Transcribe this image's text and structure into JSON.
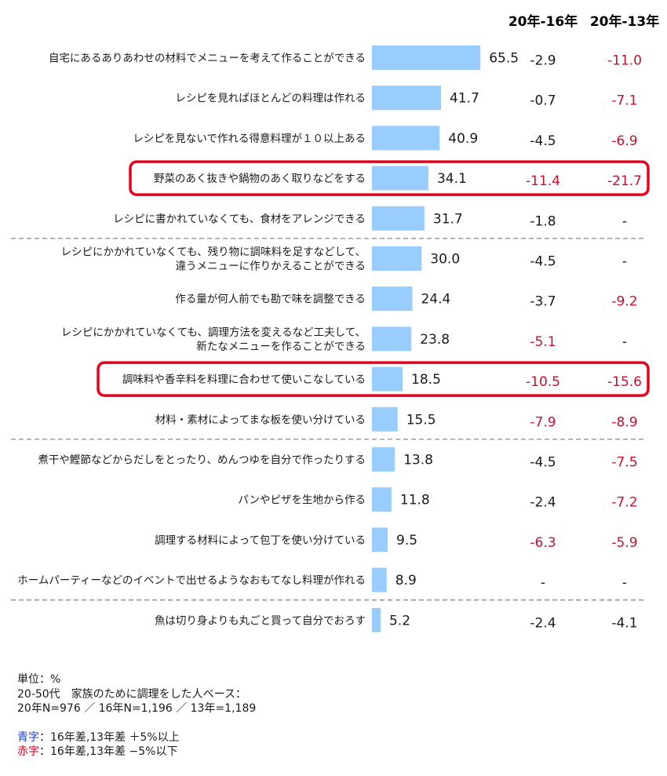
{
  "chart_data": {
    "type": "bar",
    "orientation": "horizontal",
    "unit": "%",
    "columns": [
      "20年-16年",
      "20年-13年"
    ],
    "categories": [
      [
        "自宅にあるありあわせの材料でメニューを考えて作ることができる"
      ],
      [
        "レシピを見ればほとんどの料理は作れる"
      ],
      [
        "レシピを見ないで作れる得意料理が１０以上ある"
      ],
      [
        "野菜のあく抜きや鍋物のあく取りなどをする"
      ],
      [
        "レシピに書かれていなくても、食材をアレンジできる"
      ],
      [
        "レシピにかかれていなくても、残り物に調味料を足すなどして、",
        "違うメニューに作りかえることができる"
      ],
      [
        "作る量が何人前でも勘で味を調整できる"
      ],
      [
        "レシピにかかれていなくても、調理方法を変えるなど工夫して、",
        "新たなメニューを作ることができる"
      ],
      [
        "調味料や香辛料を料理に合わせて使いこなしている"
      ],
      [
        "材料・素材によってまな板を使い分けている"
      ],
      [
        "煮干や鰹節などからだしをとったり、めんつゆを自分で作ったりする"
      ],
      [
        "パンやピザを生地から作る"
      ],
      [
        "調理する材料によって包丁を使い分けている"
      ],
      [
        "ホームパーティーなどのイベントで出せるようなおもてなし料理が作れる"
      ],
      [
        "魚は切り身よりも丸ごと買って自分でおろす"
      ]
    ],
    "values": [
      65.5,
      41.7,
      40.9,
      34.1,
      31.7,
      30.0,
      24.4,
      23.8,
      18.5,
      15.5,
      13.8,
      11.8,
      9.5,
      8.9,
      5.2
    ],
    "value_labels": [
      "65.5",
      "41.7",
      "40.9",
      "34.1",
      "31.7",
      "30.0",
      "24.4",
      "23.8",
      "18.5",
      "15.5",
      "13.8",
      "11.8",
      "9.5",
      "8.9",
      "5.2"
    ],
    "diff_16": [
      "-2.9",
      "-0.7",
      "-4.5",
      "-11.4",
      "-1.8",
      "-4.5",
      "-3.7",
      "-5.1",
      "-10.5",
      "-7.9",
      "-4.5",
      "-2.4",
      "-6.3",
      "-",
      "-2.4"
    ],
    "diff_16_color": [
      "black",
      "black",
      "black",
      "red",
      "black",
      "black",
      "black",
      "red",
      "red",
      "red",
      "black",
      "black",
      "red",
      "black",
      "black"
    ],
    "diff_13": [
      "-11.0",
      "-7.1",
      "-6.9",
      "-21.7",
      "-",
      "-",
      "-9.2",
      "-",
      "-15.6",
      "-8.9",
      "-7.5",
      "-7.2",
      "-5.9",
      "-",
      "-4.1"
    ],
    "diff_13_color": [
      "red",
      "red",
      "red",
      "red",
      "black",
      "black",
      "red",
      "black",
      "red",
      "red",
      "red",
      "red",
      "red",
      "black",
      "black"
    ],
    "highlighted_rows": [
      3,
      8
    ],
    "separators_after_rows": [
      4,
      9,
      13
    ],
    "xlim": [
      0,
      100
    ]
  },
  "colors": {
    "bar": "#99ccff",
    "red": "#c8102e",
    "highlight": "#e8001c",
    "blue": "#1f3fbf"
  },
  "notes": {
    "unit": "単位：%",
    "base": "20-50代　家族のために調理をした人ベース：",
    "sample": "20年N=976 ／ 16年N=1,196 ／ 13年=1,189",
    "blue_word": "青字",
    "blue_text": "：16年差,13年差 ＋5%以上",
    "red_word": "赤字",
    "red_text": "：16年差,13年差 −5%以下"
  }
}
